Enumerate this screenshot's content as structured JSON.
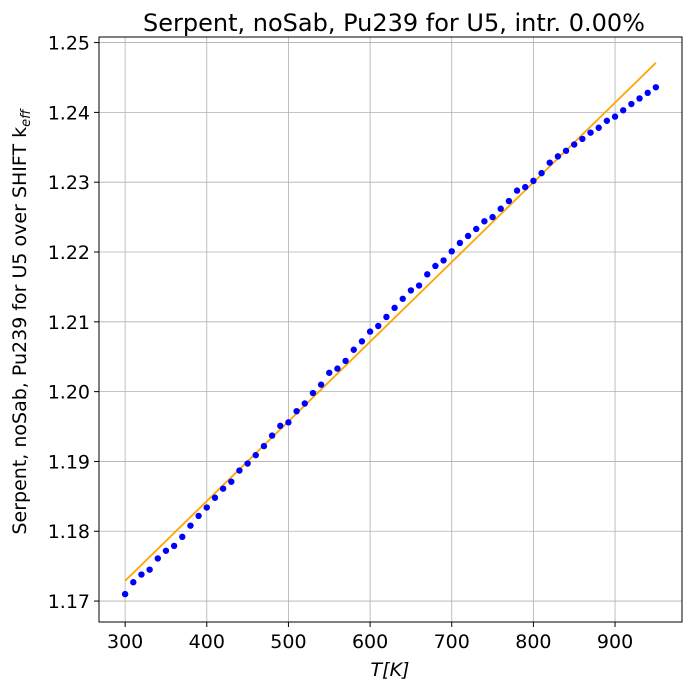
{
  "chart_data": {
    "type": "scatter",
    "title": "Serpent, noSab, Pu239 for U5, intr. 0.00%",
    "xlabel_main": "T[K]",
    "ylabel_main": "Serpent, noSab, Pu239 for U5 over SHIFT k",
    "ylabel_sub": "eff",
    "xlim": [
      268,
      982
    ],
    "ylim": [
      1.167,
      1.2508
    ],
    "x_ticks": [
      300,
      400,
      500,
      600,
      700,
      800,
      900
    ],
    "x_tick_labels": [
      "300",
      "400",
      "500",
      "600",
      "700",
      "800",
      "900"
    ],
    "y_ticks": [
      1.17,
      1.18,
      1.19,
      1.2,
      1.21,
      1.22,
      1.23,
      1.24,
      1.25
    ],
    "y_tick_labels": [
      "1.17",
      "1.18",
      "1.19",
      "1.20",
      "1.21",
      "1.22",
      "1.23",
      "1.24",
      "1.25"
    ],
    "grid": true,
    "series": [
      {
        "kind": "scatter",
        "color": "#0000ff",
        "x": [
          300,
          310,
          320,
          330,
          340,
          350,
          360,
          370,
          380,
          390,
          400,
          410,
          420,
          430,
          440,
          450,
          460,
          470,
          480,
          490,
          500,
          510,
          520,
          530,
          540,
          550,
          560,
          570,
          580,
          590,
          600,
          610,
          620,
          630,
          640,
          650,
          660,
          670,
          680,
          690,
          700,
          710,
          720,
          730,
          740,
          750,
          760,
          770,
          780,
          790,
          800,
          810,
          820,
          830,
          840,
          850,
          860,
          870,
          880,
          890,
          900,
          910,
          920,
          930,
          940,
          950
        ],
        "y": [
          1.171,
          1.1727,
          1.1738,
          1.1745,
          1.1761,
          1.1772,
          1.1779,
          1.1792,
          1.1808,
          1.1822,
          1.1834,
          1.1848,
          1.1861,
          1.1871,
          1.1887,
          1.1897,
          1.1909,
          1.1922,
          1.1937,
          1.1951,
          1.1956,
          1.1972,
          1.1983,
          1.1998,
          1.201,
          1.2027,
          1.2033,
          1.2044,
          1.206,
          1.2072,
          1.2086,
          1.2094,
          1.2107,
          1.212,
          1.2133,
          1.2145,
          1.2152,
          1.2168,
          1.218,
          1.2188,
          1.2201,
          1.2213,
          1.2223,
          1.2233,
          1.2244,
          1.225,
          1.2262,
          1.2273,
          1.2288,
          1.2293,
          1.2302,
          1.2313,
          1.2328,
          1.2337,
          1.2345,
          1.2354,
          1.2362,
          1.2371,
          1.2378,
          1.2388,
          1.2394,
          1.2403,
          1.2412,
          1.242,
          1.2428,
          1.2436
        ]
      },
      {
        "kind": "line",
        "color": "#ffa500",
        "x": [
          300,
          950
        ],
        "y": [
          1.1729,
          1.2471
        ]
      }
    ]
  }
}
